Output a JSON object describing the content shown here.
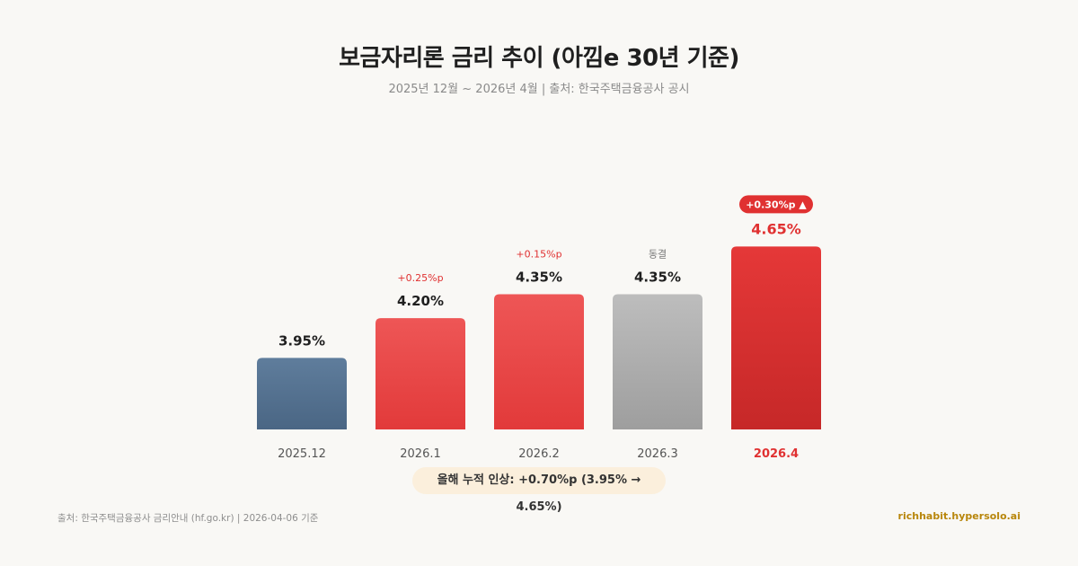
{
  "header": {
    "title": "보금자리론 금리 추이 (아낌e 30년 기준)",
    "subtitle": "2025년 12월 ~ 2026년 4월 | 출처: 한국주택금융공사 공시"
  },
  "chart_data": {
    "type": "bar",
    "categories": [
      "2025.12",
      "2026.1",
      "2026.2",
      "2026.3",
      "2026.4"
    ],
    "values": [
      3.95,
      4.2,
      4.35,
      4.35,
      4.65
    ],
    "value_labels": [
      "3.95%",
      "4.20%",
      "4.35%",
      "4.35%",
      "4.65%"
    ],
    "change_labels": [
      "",
      "+0.25%p",
      "+0.15%p",
      "동결",
      "+0.30%p ▲"
    ],
    "change_types": [
      "none",
      "up",
      "up",
      "flat",
      "up-badge"
    ],
    "bar_styles": [
      "base",
      "up",
      "up",
      "flat",
      "latest"
    ],
    "highlight_index": 4,
    "ylim": [
      3.5,
      4.72
    ],
    "colors": {
      "base": [
        "#5f7d9c",
        "#4a6684"
      ],
      "up": [
        "#ee5656",
        "#e23a3a"
      ],
      "flat": [
        "#bdbdbd",
        "#9e9e9e"
      ],
      "latest": [
        "#e53838",
        "#c62828"
      ],
      "up_text": "#e03131",
      "flat_text": "#777777",
      "label_text": "#1f1f1f",
      "axis_text": "#555555",
      "highlight_text": "#e03131"
    }
  },
  "summary": {
    "text": "올해 누적 인상: +0.70%p (3.95% → 4.65%)"
  },
  "footer": {
    "source": "출처: 한국주택금융공사 금리안내 (hf.go.kr) | 2026-04-06 기준",
    "brand": "richhabit.hypersolo.ai"
  }
}
